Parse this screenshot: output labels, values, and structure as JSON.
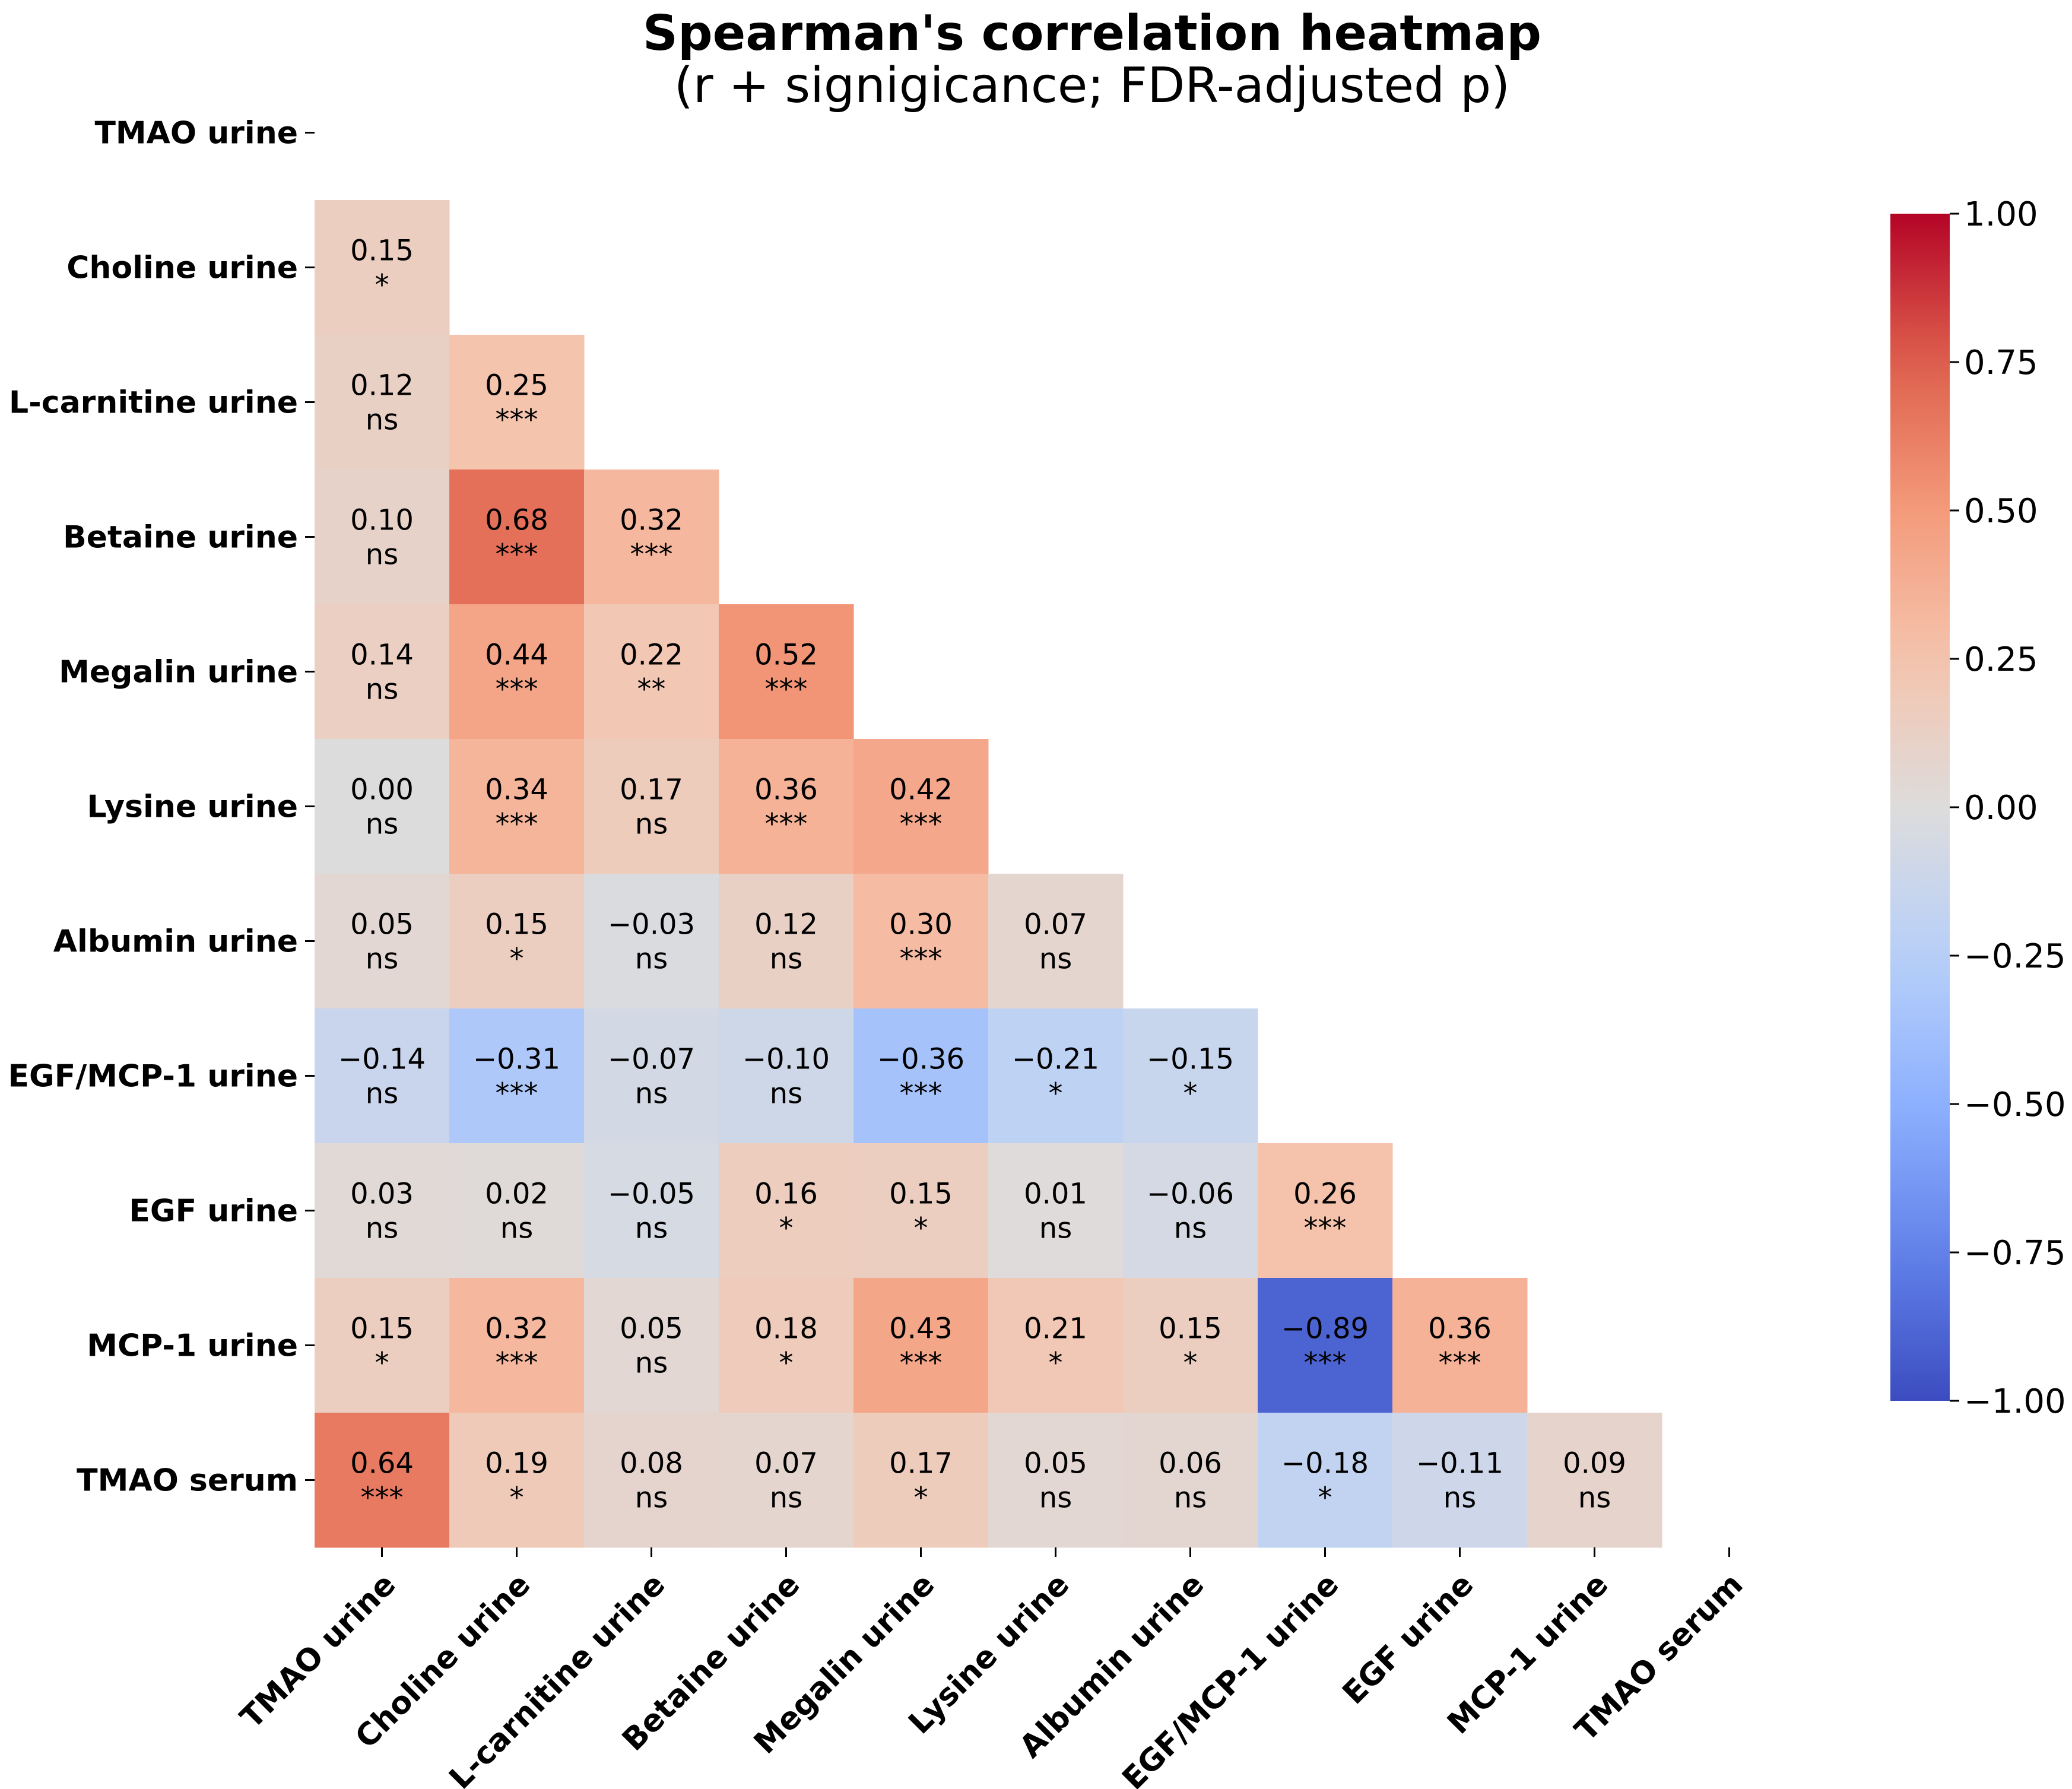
{
  "chart_data": {
    "type": "heatmap",
    "title": "Spearman's correlation heatmap",
    "subtitle": "(r + signigicance; FDR-adjusted p)",
    "variables": [
      "TMAO urine",
      "Choline urine",
      "L-carnitine urine",
      "Betaine urine",
      "Megalin urine",
      "Lysine urine",
      "Albumin urine",
      "EGF/MCP-1 urine",
      "EGF urine",
      "MCP-1 urine",
      "TMAO serum"
    ],
    "lower_triangle": [
      [],
      [
        {
          "r": "0.15",
          "sig": "*"
        }
      ],
      [
        {
          "r": "0.12",
          "sig": "ns"
        },
        {
          "r": "0.25",
          "sig": "***"
        }
      ],
      [
        {
          "r": "0.10",
          "sig": "ns"
        },
        {
          "r": "0.68",
          "sig": "***"
        },
        {
          "r": "0.32",
          "sig": "***"
        }
      ],
      [
        {
          "r": "0.14",
          "sig": "ns"
        },
        {
          "r": "0.44",
          "sig": "***"
        },
        {
          "r": "0.22",
          "sig": "**"
        },
        {
          "r": "0.52",
          "sig": "***"
        }
      ],
      [
        {
          "r": "0.00",
          "sig": "ns"
        },
        {
          "r": "0.34",
          "sig": "***"
        },
        {
          "r": "0.17",
          "sig": "ns"
        },
        {
          "r": "0.36",
          "sig": "***"
        },
        {
          "r": "0.42",
          "sig": "***"
        }
      ],
      [
        {
          "r": "0.05",
          "sig": "ns"
        },
        {
          "r": "0.15",
          "sig": "*"
        },
        {
          "r": "−0.03",
          "sig": "ns"
        },
        {
          "r": "0.12",
          "sig": "ns"
        },
        {
          "r": "0.30",
          "sig": "***"
        },
        {
          "r": "0.07",
          "sig": "ns"
        }
      ],
      [
        {
          "r": "−0.14",
          "sig": "ns"
        },
        {
          "r": "−0.31",
          "sig": "***"
        },
        {
          "r": "−0.07",
          "sig": "ns"
        },
        {
          "r": "−0.10",
          "sig": "ns"
        },
        {
          "r": "−0.36",
          "sig": "***"
        },
        {
          "r": "−0.21",
          "sig": "*"
        },
        {
          "r": "−0.15",
          "sig": "*"
        }
      ],
      [
        {
          "r": "0.03",
          "sig": "ns"
        },
        {
          "r": "0.02",
          "sig": "ns"
        },
        {
          "r": "−0.05",
          "sig": "ns"
        },
        {
          "r": "0.16",
          "sig": "*"
        },
        {
          "r": "0.15",
          "sig": "*"
        },
        {
          "r": "0.01",
          "sig": "ns"
        },
        {
          "r": "−0.06",
          "sig": "ns"
        },
        {
          "r": "0.26",
          "sig": "***"
        }
      ],
      [
        {
          "r": "0.15",
          "sig": "*"
        },
        {
          "r": "0.32",
          "sig": "***"
        },
        {
          "r": "0.05",
          "sig": "ns"
        },
        {
          "r": "0.18",
          "sig": "*"
        },
        {
          "r": "0.43",
          "sig": "***"
        },
        {
          "r": "0.21",
          "sig": "*"
        },
        {
          "r": "0.15",
          "sig": "*"
        },
        {
          "r": "−0.89",
          "sig": "***"
        },
        {
          "r": "0.36",
          "sig": "***"
        }
      ],
      [
        {
          "r": "0.64",
          "sig": "***"
        },
        {
          "r": "0.19",
          "sig": "*"
        },
        {
          "r": "0.08",
          "sig": "ns"
        },
        {
          "r": "0.07",
          "sig": "ns"
        },
        {
          "r": "0.17",
          "sig": "*"
        },
        {
          "r": "0.05",
          "sig": "ns"
        },
        {
          "r": "0.06",
          "sig": "ns"
        },
        {
          "r": "−0.18",
          "sig": "*"
        },
        {
          "r": "−0.11",
          "sig": "ns"
        },
        {
          "r": "0.09",
          "sig": "ns"
        }
      ]
    ],
    "colorbar": {
      "range": [
        -1.0,
        1.0
      ],
      "ticks": [
        1.0,
        0.75,
        0.5,
        0.25,
        0.0,
        -0.25,
        -0.5,
        -0.75,
        -1.0
      ],
      "tick_labels": [
        "1.00",
        "0.75",
        "0.50",
        "0.25",
        "0.00",
        "−0.25",
        "−0.50",
        "−0.75",
        "−1.00"
      ],
      "colormap": "coolwarm"
    },
    "colors": {
      "negative": "#3b4cc0",
      "neutral": "#dddcdc",
      "positive": "#b40426"
    }
  }
}
